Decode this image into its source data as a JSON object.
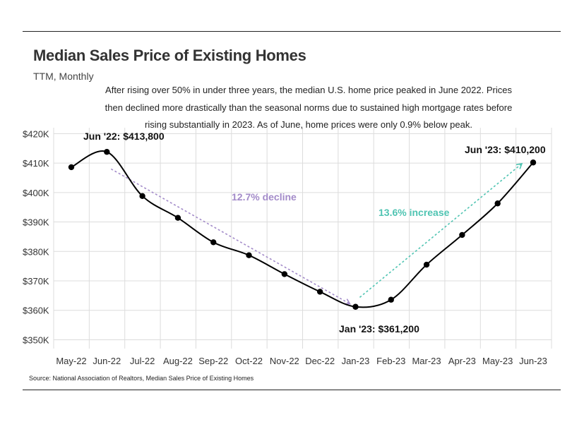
{
  "chart_data": {
    "type": "line",
    "title": "Median Sales Price of Existing Homes",
    "subtitle": "TTM, Monthly",
    "description": "After rising over 50% in under three years, the median U.S. home price peaked in June 2022. Prices then declined more drastically than the seasonal norms due to sustained high mortgage rates before rising substantially in 2023. As of June, home prices were only 0.9% below peak.",
    "source": "Source:  National Association of Realtors, Median Sales Price of Existing Homes",
    "categories": [
      "May-22",
      "Jun-22",
      "Jul-22",
      "Aug-22",
      "Sep-22",
      "Oct-22",
      "Nov-22",
      "Dec-22",
      "Jan-23",
      "Feb-23",
      "Mar-23",
      "Apr-23",
      "May-23",
      "Jun-23"
    ],
    "series": [
      {
        "name": "Median Sales Price",
        "color": "#000000",
        "values": [
          408600,
          413800,
          398800,
          391400,
          383100,
          378700,
          372300,
          366300,
          361200,
          363600,
          375500,
          385600,
          396300,
          410200
        ]
      }
    ],
    "ylim": [
      347000,
      422000
    ],
    "yticks": [
      350000,
      360000,
      370000,
      380000,
      390000,
      400000,
      410000,
      420000
    ],
    "ytick_labels": [
      "$350K",
      "$360K",
      "$370K",
      "$380K",
      "$390K",
      "$400K",
      "$410K",
      "$420K"
    ],
    "grid": true,
    "callouts": {
      "peak": "Jun '22: $413,800",
      "trough": "Jan '23: $361,200",
      "latest": "Jun '23: $410,200"
    },
    "annotations": [
      {
        "name": "decline",
        "text": "12.7% decline",
        "color": "#a38bc9",
        "from": {
          "x": "Jun-22",
          "y": 408000
        },
        "to": {
          "x": "Jan-23",
          "y": 362200
        }
      },
      {
        "name": "increase",
        "text": "13.6% increase",
        "color": "#4fc4b2",
        "from": {
          "x": "Jan-23",
          "y": 364400
        },
        "to": {
          "x": "Jun-23",
          "y": 409800
        }
      }
    ]
  }
}
